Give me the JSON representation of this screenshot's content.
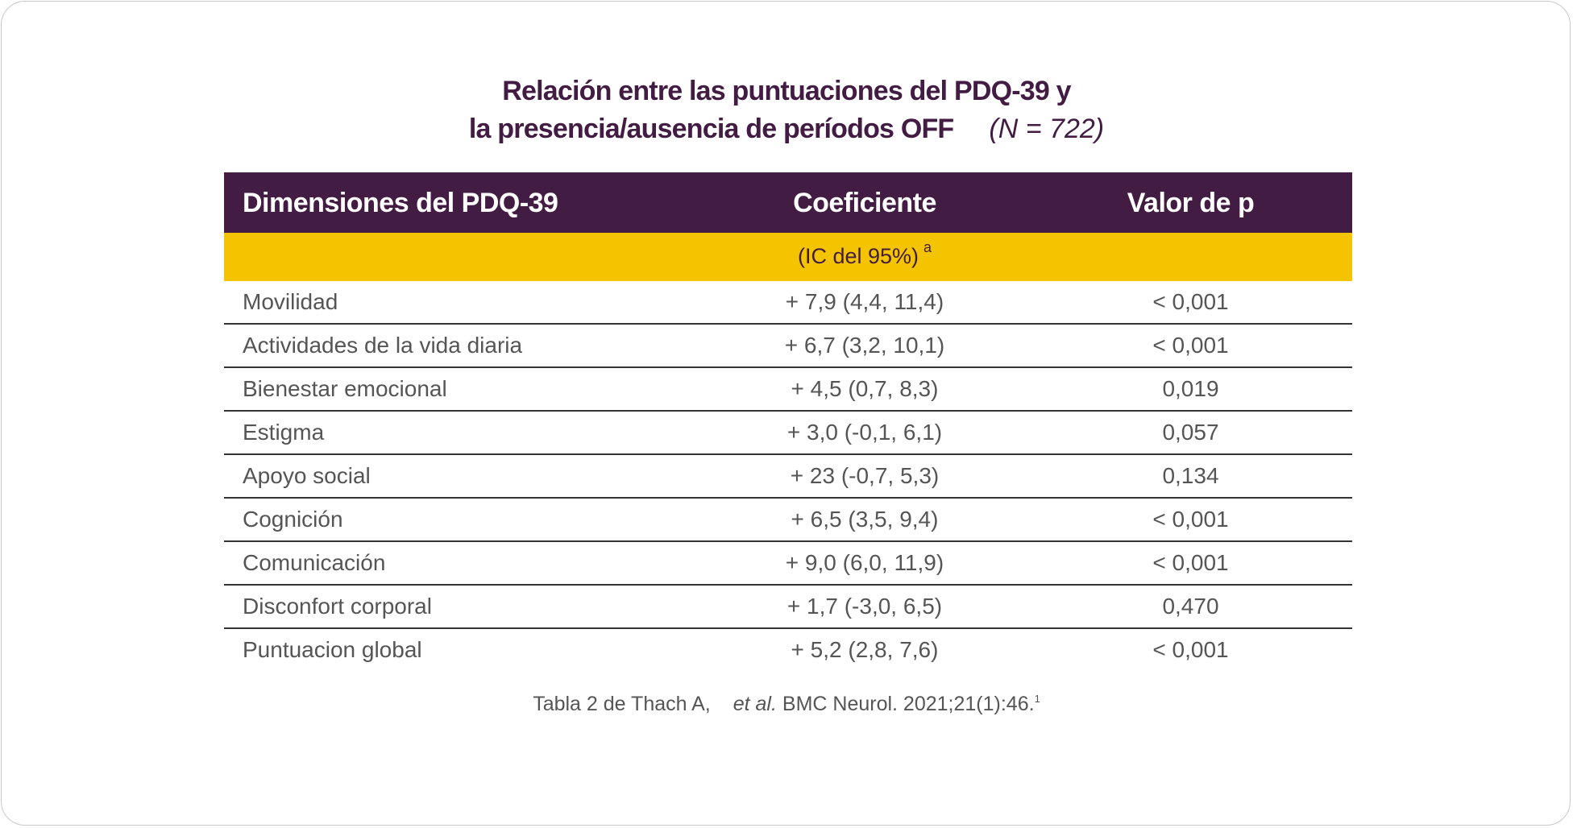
{
  "title": {
    "line1": "Relación entre las puntuaciones del PDQ-39 y",
    "line2": "la presencia/ausencia de períodos OFF",
    "n": "(N = 722)"
  },
  "colors": {
    "header": "#421c42",
    "subheader": "#f5c400"
  },
  "table": {
    "headers": [
      "Dimensiones del PDQ-39",
      "Coeficiente",
      "Valor de p"
    ],
    "subheader": {
      "text": "(IC del 95%)",
      "footnote": "a"
    },
    "rows": [
      [
        "Movilidad",
        "+ 7,9 (4,4, 11,4)",
        "< 0,001"
      ],
      [
        "Actividades de la vida diaria",
        "+ 6,7 (3,2, 10,1)",
        "< 0,001"
      ],
      [
        "Bienestar emocional",
        "+ 4,5 (0,7, 8,3)",
        "0,019"
      ],
      [
        "Estigma",
        "+ 3,0 (-0,1, 6,1)",
        "0,057"
      ],
      [
        "Apoyo social",
        "+ 23 (-0,7, 5,3)",
        "0,134"
      ],
      [
        "Cognición",
        "+ 6,5 (3,5, 9,4)",
        "< 0,001"
      ],
      [
        "Comunicación",
        "+ 9,0 (6,0, 11,9)",
        "< 0,001"
      ],
      [
        "Disconfort corporal",
        "+ 1,7 (-3,0, 6,5)",
        "0,470"
      ],
      [
        "Puntuacion global",
        "+ 5,2 (2,8, 7,6)",
        "< 0,001"
      ]
    ]
  },
  "source": {
    "pre": "Tabla 2 de Thach A,",
    "etal": "et al.",
    "post": "BMC Neurol. 2021;21(1):46.",
    "ref": "1"
  }
}
